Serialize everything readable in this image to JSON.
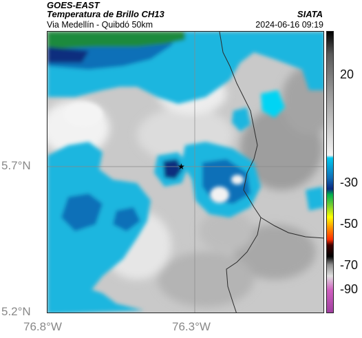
{
  "header": {
    "satellite": "GOES-EAST",
    "product": "Temperatura de Brillo CH13",
    "organization": "SIATA",
    "region": "Via Medellín - Quibdó 50km",
    "datetime": "2024-06-16 09:19"
  },
  "axes": {
    "lat_labels": [
      "5.7°N",
      "5.2°N"
    ],
    "lon_labels": [
      "76.8°W",
      "76.3°W"
    ]
  },
  "colorbar": {
    "tick_labels": [
      "20",
      "-30",
      "-50",
      "-70",
      "-90"
    ],
    "colors": [
      "#000000",
      "#7a7a7a",
      "#f4f4f4",
      "#00c8f0",
      "#0a2a80",
      "#00b050",
      "#ffff00",
      "#ff3000",
      "#000000",
      "#c0c0c0",
      "#d060c0"
    ]
  },
  "map": {
    "colors": {
      "warm_gray": "#a8a8a8",
      "mid_gray": "#cfcfcf",
      "light": "#f2f2f2",
      "cyan": "#1ab6df",
      "bright_cyan": "#00d4f4",
      "blue": "#1170b8",
      "dark_blue": "#0c2f7e",
      "green": "#1f8a3c"
    },
    "marker_icon": "star-icon"
  }
}
